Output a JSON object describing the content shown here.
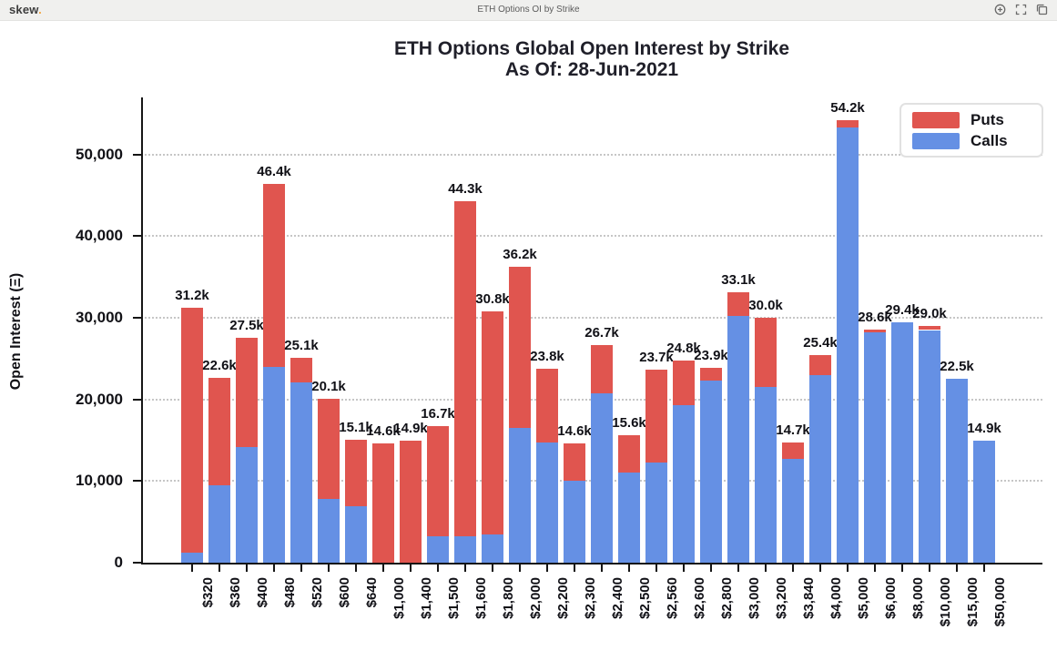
{
  "topbar": {
    "logo": "skew",
    "logo_dot": ".",
    "title": "ETH Options OI by Strike",
    "icons": [
      "zoom-in-icon",
      "fullscreen-icon",
      "copy-icon"
    ]
  },
  "chart": {
    "title_line1": "ETH Options Global Open Interest by Strike",
    "title_line2": "As Of: 28-Jun-2021",
    "legend_items": [
      {
        "label": "Puts",
        "color": "#e0554f"
      },
      {
        "label": "Calls",
        "color": "#6590e4"
      }
    ]
  },
  "chart_data": {
    "type": "bar",
    "stacked": true,
    "title": "ETH Options Global Open Interest by Strike",
    "subtitle": "As Of: 28-Jun-2021",
    "xlabel": "",
    "ylabel": "Open Interest (Ξ)",
    "grid": "dotted-horizontal",
    "legend_position": "top-right",
    "ylim": [
      0,
      57000
    ],
    "ytick_values": [
      0,
      10000,
      20000,
      30000,
      40000,
      50000
    ],
    "ytick_labels": [
      "0",
      "10,000",
      "20,000",
      "30,000",
      "40,000",
      "50,000"
    ],
    "categories": [
      "$320",
      "$360",
      "$400",
      "$480",
      "$520",
      "$600",
      "$640",
      "$1,000",
      "$1,400",
      "$1,500",
      "$1,600",
      "$1,800",
      "$2,000",
      "$2,200",
      "$2,300",
      "$2,400",
      "$2,500",
      "$2,560",
      "$2,600",
      "$2,800",
      "$3,000",
      "$3,200",
      "$3,840",
      "$4,000",
      "$5,000",
      "$6,000",
      "$8,000",
      "$10,000",
      "$15,000",
      "$50,000"
    ],
    "series": [
      {
        "name": "Calls",
        "color": "#6590e4",
        "values": [
          1200,
          9500,
          14200,
          24000,
          22100,
          7800,
          6900,
          0,
          0,
          3200,
          3200,
          3500,
          16500,
          14700,
          10000,
          20800,
          11000,
          12300,
          19300,
          22300,
          30200,
          21500,
          12700,
          23000,
          53300,
          28200,
          29400,
          28500,
          22500,
          14900
        ]
      },
      {
        "name": "Puts",
        "color": "#e0554f",
        "values": [
          30000,
          13100,
          13300,
          22400,
          3000,
          12300,
          8200,
          14600,
          14900,
          13500,
          41100,
          27300,
          19700,
          9100,
          4600,
          5900,
          4600,
          11400,
          5500,
          1600,
          2900,
          8500,
          2000,
          2400,
          900,
          400,
          0,
          500,
          0,
          0
        ]
      }
    ],
    "totals": [
      31200,
      22600,
      27500,
      46400,
      25100,
      20100,
      15100,
      14600,
      14900,
      16700,
      44300,
      30800,
      36200,
      23800,
      14600,
      26700,
      15600,
      23700,
      24800,
      23900,
      33100,
      30000,
      14700,
      25400,
      54200,
      28600,
      29400,
      29000,
      22500,
      14900
    ],
    "total_labels": [
      "31.2k",
      "22.6k",
      "27.5k",
      "46.4k",
      "25.1k",
      "20.1k",
      "15.1k",
      "14.6k",
      "14.9k",
      "16.7k",
      "44.3k",
      "30.8k",
      "36.2k",
      "23.8k",
      "14.6k",
      "26.7k",
      "15.6k",
      "23.7k",
      "24.8k",
      "23.9k",
      "33.1k",
      "30.0k",
      "14.7k",
      "25.4k",
      "54.2k",
      "28.6k",
      "29.4k",
      "29.0k",
      "22.5k",
      "14.9k"
    ]
  }
}
